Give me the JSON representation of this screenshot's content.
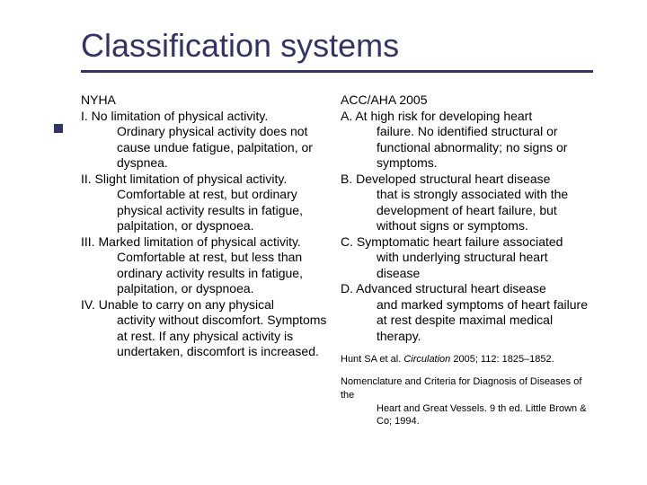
{
  "title": "Classification systems",
  "colors": {
    "accent": "#333366",
    "text": "#000000",
    "bg": "#ffffff"
  },
  "left": {
    "label": "NYHA",
    "items": [
      {
        "lead": "I. No limitation of physical activity.",
        "cont": "Ordinary physical activity does not cause undue fatigue, palpitation, or dyspnea."
      },
      {
        "lead": "II. Slight limitation of physical activity.",
        "cont": "Comfortable at rest, but ordinary physical activity results in fatigue, palpitation, or dyspnoea."
      },
      {
        "lead": "III. Marked limitation of physical activity.",
        "cont": "Comfortable at rest, but less than ordinary activity results in fatigue, palpitation, or dyspnoea."
      },
      {
        "lead": "IV. Unable to carry on any physical",
        "cont": "activity without discomfort. Symptoms at rest. If any physical activity is undertaken, discomfort is increased."
      }
    ]
  },
  "right": {
    "label": "ACC/AHA 2005",
    "items": [
      {
        "lead": "A. At high risk for developing heart",
        "cont": "failure. No identified structural or functional abnormality; no signs or symptoms."
      },
      {
        "lead": "B. Developed structural heart disease",
        "cont": "that is strongly associated with the development of heart failure, but without signs or symptoms."
      },
      {
        "lead": "C. Symptomatic heart failure associated",
        "cont": "with underlying structural heart disease"
      },
      {
        "lead": "D. Advanced structural heart disease",
        "cont": "and marked symptoms of heart failure at rest despite maximal medical therapy."
      }
    ],
    "citations": [
      {
        "lead": "Hunt SA et al. ",
        "ital": "Circulation",
        "tail": " 2005; 112: 1825–1852."
      },
      {
        "lead": "Nomenclature and Criteria for Diagnosis of Diseases of the",
        "cont": "Heart and Great Vessels. 9 th ed. Little Brown & Co; 1994."
      }
    ]
  }
}
